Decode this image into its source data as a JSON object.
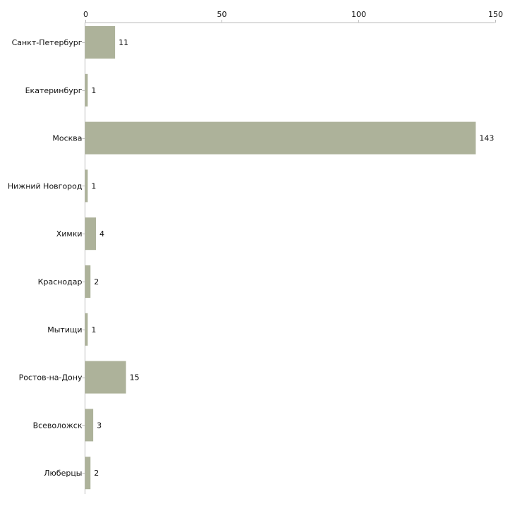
{
  "chart_data": {
    "type": "bar",
    "orientation": "horizontal",
    "title": "",
    "xlabel": "",
    "ylabel": "",
    "xlim": [
      0,
      150
    ],
    "x_ticks": [
      0,
      50,
      100,
      150
    ],
    "x_tick_labels": [
      "0",
      "50",
      "100",
      "150"
    ],
    "x_axis_position": "top",
    "grid": false,
    "legend": "none",
    "categories": [
      "Санкт-Петербург",
      "Екатеринбург",
      "Москва",
      "Нижний Новгород",
      "Химки",
      "Краснодар",
      "Мытищи",
      "Ростов-на-Дону",
      "Всеволожск",
      "Люберцы"
    ],
    "values": [
      11,
      1,
      143,
      1,
      4,
      2,
      1,
      15,
      3,
      2
    ],
    "value_labels": [
      "11",
      "1",
      "143",
      "1",
      "4",
      "2",
      "1",
      "15",
      "3",
      "2"
    ],
    "colors": {
      "bar": "#adb29a",
      "axis": "#bbbbbb",
      "text": "#111111"
    }
  }
}
